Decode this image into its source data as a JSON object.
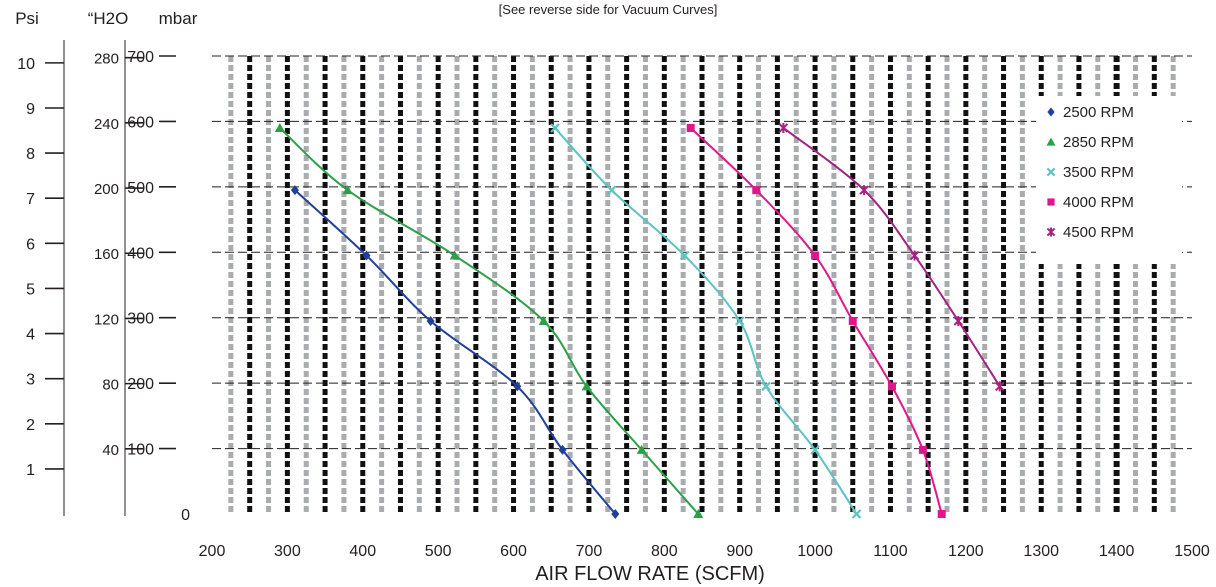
{
  "note": "[See reverse side for Vacuum Curves]",
  "chart_data": {
    "type": "scatter",
    "xlabel": "AIR FLOW RATE (SCFM)",
    "ylabel": "mbar",
    "xlim": [
      200,
      1500
    ],
    "ylim": [
      0,
      700
    ],
    "x_ticks": [
      "200",
      "300",
      "400",
      "500",
      "600",
      "700",
      "800",
      "900",
      "1000",
      "1100",
      "1200",
      "1300",
      "1400",
      "1500"
    ],
    "y_ticks": [
      "0",
      "100",
      "200",
      "300",
      "400",
      "500",
      "600",
      "700"
    ],
    "secondary_axes": [
      {
        "label": "“H2O",
        "ticks": [
          "40",
          "80",
          "120",
          "160",
          "200",
          "240",
          "280"
        ]
      },
      {
        "label": "Psi",
        "ticks": [
          "1",
          "2",
          "3",
          "4",
          "5",
          "6",
          "7",
          "8",
          "9",
          "10"
        ]
      }
    ],
    "grid": true,
    "legend_position": "top-right",
    "series": [
      {
        "name": "2500 RPM",
        "color": "#1f3f9a",
        "marker": "diamond",
        "x": [
          310,
          405,
          490,
          605,
          665,
          735
        ],
        "y": [
          495,
          395,
          295,
          195,
          98,
          0
        ]
      },
      {
        "name": "2850 RPM",
        "color": "#2aa048",
        "marker": "triangle",
        "x": [
          290,
          380,
          522,
          640,
          697,
          770,
          845
        ],
        "y": [
          590,
          495,
          395,
          295,
          195,
          98,
          0
        ]
      },
      {
        "name": "3500 RPM",
        "color": "#5bc4c2",
        "marker": "x",
        "x": [
          655,
          730,
          827,
          900,
          935,
          1000,
          1055
        ],
        "y": [
          590,
          495,
          395,
          295,
          195,
          98,
          0
        ]
      },
      {
        "name": "4000 RPM",
        "color": "#e0178c",
        "marker": "square",
        "x": [
          835,
          922,
          1000,
          1050,
          1102,
          1143,
          1168
        ],
        "y": [
          590,
          495,
          395,
          295,
          195,
          98,
          0
        ]
      },
      {
        "name": "4500 RPM",
        "color": "#a3237f",
        "marker": "asterisk",
        "x": [
          958,
          1065,
          1132,
          1190,
          1245
        ],
        "y": [
          590,
          495,
          395,
          295,
          195
        ]
      }
    ]
  }
}
